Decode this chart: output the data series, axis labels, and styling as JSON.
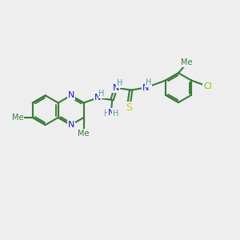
{
  "background_color": "#eeeeee",
  "bond_color": "#3a7a3a",
  "bond_width": 1.5,
  "N_color": "#1a1acc",
  "S_color": "#cccc00",
  "Cl_color": "#77cc00",
  "H_color": "#5599aa",
  "figsize": [
    3.0,
    3.0
  ],
  "dpi": 100,
  "xlim": [
    0,
    12
  ],
  "ylim": [
    0,
    10
  ]
}
